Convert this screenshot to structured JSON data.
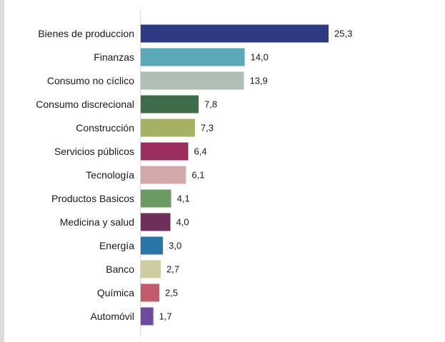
{
  "chart_data": {
    "type": "bar",
    "orientation": "horizontal",
    "title": "",
    "xlabel": "",
    "ylabel": "",
    "xlim": [
      0,
      25.3
    ],
    "grid": false,
    "legend": "none",
    "categories": [
      "Bienes de produccion",
      "Finanzas",
      "Consumo no cíclico",
      "Consumo discrecional",
      "Construcción",
      "Servicios públicos",
      "Tecnología",
      "Productos Basicos",
      "Medicina y salud",
      "Energía",
      "Banco",
      "Química",
      "Automóvil"
    ],
    "values": [
      25.3,
      14.0,
      13.9,
      7.8,
      7.3,
      6.4,
      6.1,
      4.1,
      4.0,
      3.0,
      2.7,
      2.5,
      1.7
    ],
    "value_labels": [
      "25,3",
      "14,0",
      "13,9",
      "7,8",
      "7,3",
      "6,4",
      "6,1",
      "4,1",
      "4,0",
      "3,0",
      "2,7",
      "2,5",
      "1,7"
    ],
    "colors": [
      "#2e3b84",
      "#5aa9b8",
      "#aebfb6",
      "#3e6b48",
      "#a6b164",
      "#9b2d5f",
      "#d3a9ab",
      "#6b9a63",
      "#6e2f5a",
      "#2a76a8",
      "#cfcc9f",
      "#c25b6c",
      "#6e4aa1"
    ]
  }
}
